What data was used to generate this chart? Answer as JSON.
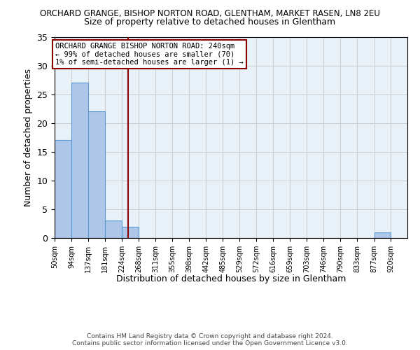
{
  "title1": "ORCHARD GRANGE, BISHOP NORTON ROAD, GLENTHAM, MARKET RASEN, LN8 2EU",
  "title2": "Size of property relative to detached houses in Glentham",
  "xlabel": "Distribution of detached houses by size in Glentham",
  "ylabel": "Number of detached properties",
  "footer1": "Contains HM Land Registry data © Crown copyright and database right 2024.",
  "footer2": "Contains public sector information licensed under the Open Government Licence v3.0.",
  "bins": [
    50,
    94,
    137,
    181,
    224,
    268,
    311,
    355,
    398,
    442,
    485,
    529,
    572,
    616,
    659,
    703,
    746,
    790,
    833,
    877,
    920
  ],
  "bar_heights": [
    17,
    27,
    22,
    3,
    2,
    0,
    0,
    0,
    0,
    0,
    0,
    0,
    0,
    0,
    0,
    0,
    0,
    0,
    0,
    1,
    0
  ],
  "bar_color": "#aec6e8",
  "bar_edge_color": "#5b9bd5",
  "property_size": 240,
  "vline_color": "#8b0000",
  "annotation_text": "ORCHARD GRANGE BISHOP NORTON ROAD: 240sqm\n← 99% of detached houses are smaller (70)\n1% of semi-detached houses are larger (1) →",
  "annotation_box_color": "white",
  "annotation_box_edge": "#8b0000",
  "ylim": [
    0,
    35
  ],
  "yticks": [
    0,
    5,
    10,
    15,
    20,
    25,
    30,
    35
  ],
  "grid_color": "#cccccc",
  "bg_color": "#e8f0f8"
}
